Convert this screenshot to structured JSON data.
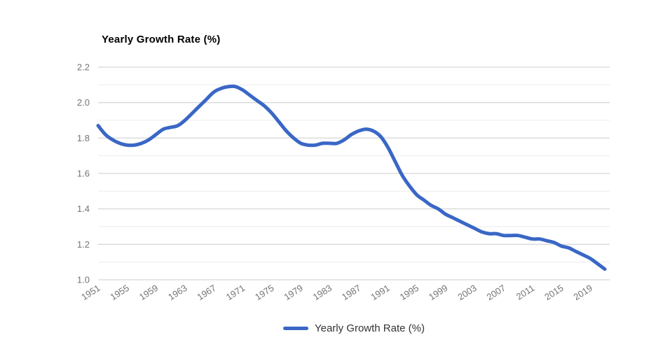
{
  "page": {
    "background": "#ffffff"
  },
  "colors": {
    "series_blue": "#3a67c6",
    "grid_major": "#cccccc",
    "grid_minor": "#ebebeb",
    "axis_label": "#757575",
    "title_text": "#000000",
    "legend_text": "#333333"
  },
  "chart_data": {
    "type": "line",
    "title": "Yearly Growth Rate (%)",
    "xlabel": "",
    "ylabel": "",
    "ylim": [
      1.0,
      2.2
    ],
    "y_major_tick_labels": [
      "1.0",
      "1.2",
      "1.4",
      "1.6",
      "1.8",
      "2.0",
      "2.2"
    ],
    "y_major_step": 0.2,
    "y_minor_step": 0.1,
    "grid": true,
    "legend_position": "bottom",
    "x_tick_labels": [
      "1951",
      "1955",
      "1959",
      "1963",
      "1967",
      "1971",
      "1975",
      "1979",
      "1983",
      "1987",
      "1991",
      "1995",
      "1999",
      "2003",
      "2007",
      "2011",
      "2015",
      "2019"
    ],
    "x": [
      1951,
      1952,
      1953,
      1954,
      1955,
      1956,
      1957,
      1958,
      1959,
      1960,
      1961,
      1962,
      1963,
      1964,
      1965,
      1966,
      1967,
      1968,
      1969,
      1970,
      1971,
      1972,
      1973,
      1974,
      1975,
      1976,
      1977,
      1978,
      1979,
      1980,
      1981,
      1982,
      1983,
      1984,
      1985,
      1986,
      1987,
      1988,
      1989,
      1990,
      1991,
      1992,
      1993,
      1994,
      1995,
      1996,
      1997,
      1998,
      1999,
      2000,
      2001,
      2002,
      2003,
      2004,
      2005,
      2006,
      2007,
      2008,
      2009,
      2010,
      2011,
      2012,
      2013,
      2014,
      2015,
      2016,
      2017,
      2018,
      2019,
      2020,
      2021
    ],
    "series": [
      {
        "name": "Yearly Growth Rate (%)",
        "color": "#3a67c6",
        "values": [
          1.87,
          1.82,
          1.79,
          1.77,
          1.76,
          1.76,
          1.77,
          1.79,
          1.82,
          1.85,
          1.86,
          1.87,
          1.9,
          1.94,
          1.98,
          2.02,
          2.06,
          2.08,
          2.09,
          2.09,
          2.07,
          2.04,
          2.01,
          1.98,
          1.94,
          1.89,
          1.84,
          1.8,
          1.77,
          1.76,
          1.76,
          1.77,
          1.77,
          1.77,
          1.79,
          1.82,
          1.84,
          1.85,
          1.84,
          1.81,
          1.75,
          1.67,
          1.59,
          1.53,
          1.48,
          1.45,
          1.42,
          1.4,
          1.37,
          1.35,
          1.33,
          1.31,
          1.29,
          1.27,
          1.26,
          1.26,
          1.25,
          1.25,
          1.25,
          1.24,
          1.23,
          1.23,
          1.22,
          1.21,
          1.19,
          1.18,
          1.16,
          1.14,
          1.12,
          1.09,
          1.06
        ]
      }
    ]
  },
  "legend": {
    "items": [
      {
        "label": "Yearly Growth Rate (%)",
        "color": "#3a67c6"
      }
    ]
  }
}
